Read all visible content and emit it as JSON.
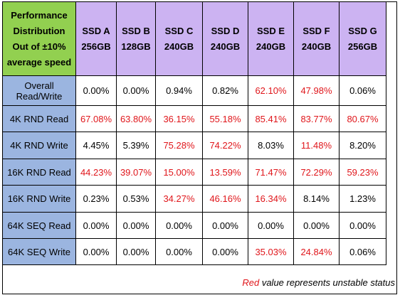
{
  "chart_data": {
    "type": "table",
    "corner_lines": [
      "Performance",
      "Distribution",
      "Out of ±10%",
      "average speed"
    ],
    "columns": [
      {
        "name": "SSD A",
        "capacity": "256GB"
      },
      {
        "name": "SSD B",
        "capacity": "128GB"
      },
      {
        "name": "SSD C",
        "capacity": "240GB"
      },
      {
        "name": "SSD D",
        "capacity": "240GB"
      },
      {
        "name": "SSD E",
        "capacity": "240GB"
      },
      {
        "name": "SSD F",
        "capacity": "240GB"
      },
      {
        "name": "SSD G",
        "capacity": "256GB"
      }
    ],
    "rows": [
      {
        "label": [
          "Overall",
          "Read/Write"
        ],
        "values": [
          "0.00%",
          "0.00%",
          "0.94%",
          "0.82%",
          "62.10%",
          "47.98%",
          "0.06%"
        ],
        "unstable": [
          false,
          false,
          false,
          false,
          true,
          true,
          false
        ]
      },
      {
        "label": [
          "4K RND Read"
        ],
        "values": [
          "67.08%",
          "63.80%",
          "36.15%",
          "55.18%",
          "85.41%",
          "83.77%",
          "80.67%"
        ],
        "unstable": [
          true,
          true,
          true,
          true,
          true,
          true,
          true
        ]
      },
      {
        "label": [
          "4K RND Write"
        ],
        "values": [
          "4.45%",
          "5.39%",
          "75.28%",
          "74.22%",
          "8.03%",
          "11.48%",
          "8.20%"
        ],
        "unstable": [
          false,
          false,
          true,
          true,
          false,
          true,
          false
        ]
      },
      {
        "label": [
          "16K RND Read"
        ],
        "values": [
          "44.23%",
          "39.07%",
          "15.00%",
          "13.59%",
          "71.47%",
          "72.29%",
          "59.23%"
        ],
        "unstable": [
          true,
          true,
          true,
          true,
          true,
          true,
          true
        ]
      },
      {
        "label": [
          "16K RND Write"
        ],
        "values": [
          "0.23%",
          "0.53%",
          "34.27%",
          "46.16%",
          "16.34%",
          "8.14%",
          "1.23%"
        ],
        "unstable": [
          false,
          false,
          true,
          true,
          true,
          false,
          false
        ]
      },
      {
        "label": [
          "64K SEQ Read"
        ],
        "values": [
          "0.00%",
          "0.00%",
          "0.00%",
          "0.00%",
          "0.00%",
          "0.00%",
          "0.00%"
        ],
        "unstable": [
          false,
          false,
          false,
          false,
          false,
          false,
          false
        ]
      },
      {
        "label": [
          "64K SEQ Write"
        ],
        "values": [
          "0.00%",
          "0.00%",
          "0.00%",
          "0.00%",
          "35.03%",
          "24.84%",
          "0.06%"
        ],
        "unstable": [
          false,
          false,
          false,
          false,
          true,
          true,
          false
        ]
      }
    ],
    "footnote": {
      "highlight": "Red",
      "rest": " value represents unstable status"
    },
    "colors": {
      "corner": "#92d050",
      "column_header": "#ccb3f2",
      "row_header": "#9bb5e0",
      "unstable_text": "#e0161b"
    }
  }
}
